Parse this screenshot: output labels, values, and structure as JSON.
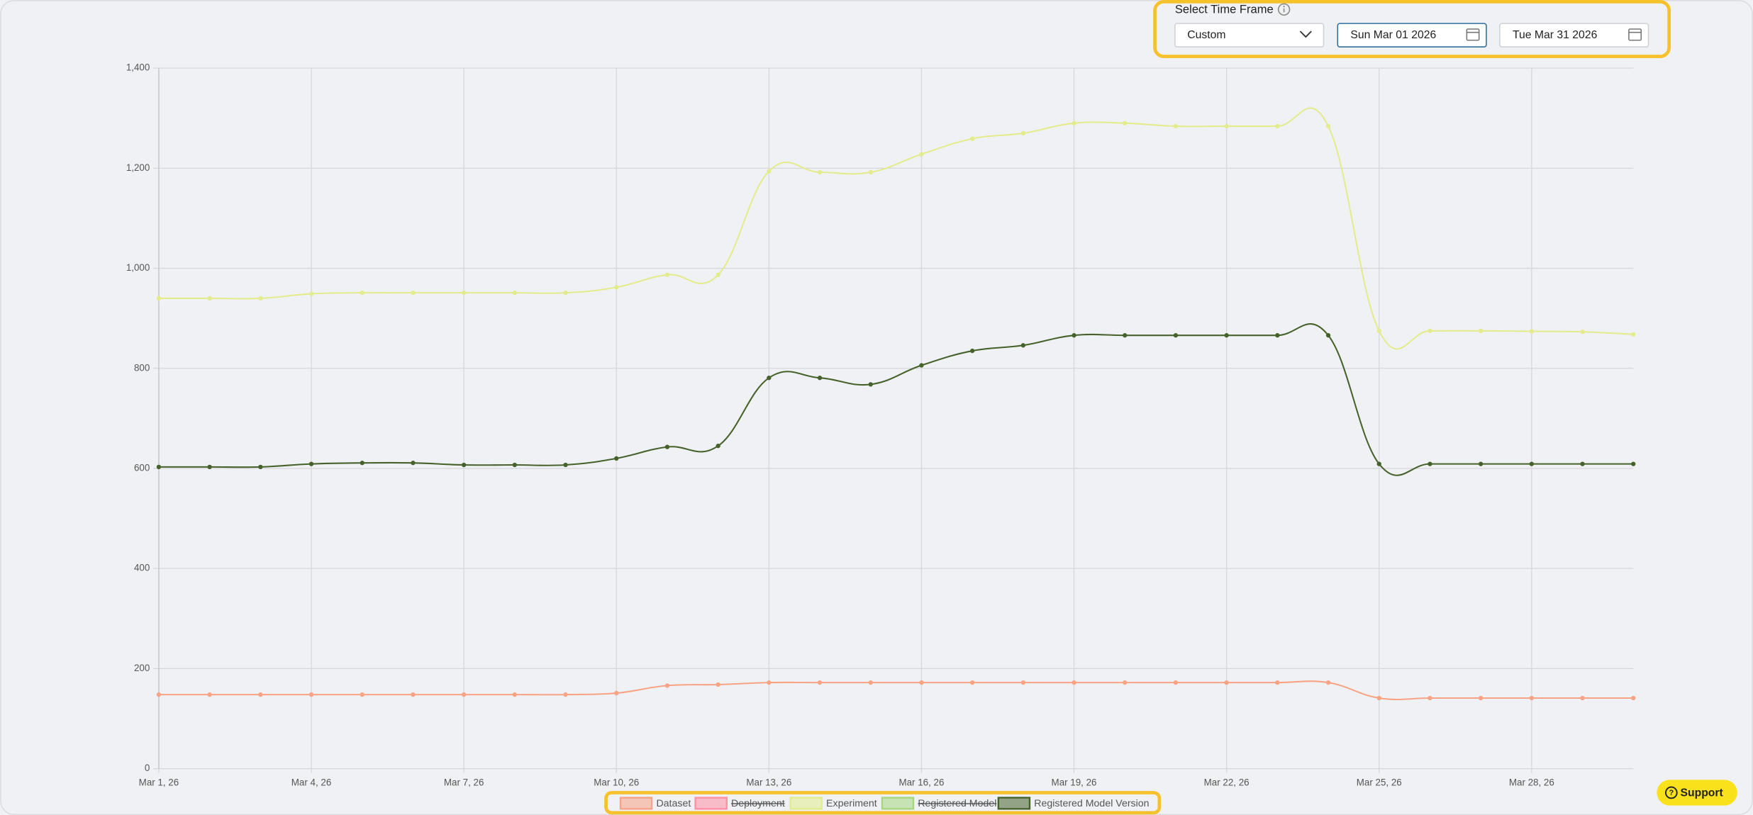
{
  "controls": {
    "label": "Select Time Frame",
    "time_frame": "Custom",
    "start_date": "Sun Mar 01 2026",
    "end_date": "Tue Mar 31 2026"
  },
  "support_button": "Support",
  "chart_data": {
    "type": "line",
    "categories": [
      "Mar 1, 26",
      null,
      null,
      "Mar 4, 26",
      null,
      null,
      "Mar 7, 26",
      null,
      null,
      "Mar 10, 26",
      null,
      null,
      "Mar 13, 26",
      null,
      null,
      "Mar 16, 26",
      null,
      null,
      "Mar 19, 26",
      null,
      null,
      "Mar 22, 26",
      null,
      null,
      "Mar 25, 26",
      null,
      null,
      "Mar 28, 26",
      null,
      null
    ],
    "series": [
      {
        "name": "Dataset",
        "color": "#f7a384",
        "values": [
          148,
          148,
          148,
          148,
          148,
          148,
          148,
          148,
          148,
          151,
          166,
          168,
          172,
          172,
          172,
          172,
          172,
          172,
          172,
          172,
          172,
          172,
          172,
          172,
          141,
          141,
          141,
          141,
          141,
          141
        ]
      },
      {
        "name": "Deployment",
        "color": "#ff8fa3",
        "hidden": true
      },
      {
        "name": "Experiment",
        "color": "#e3ec8c",
        "values": [
          940,
          940,
          940,
          949,
          951,
          951,
          951,
          951,
          951,
          962,
          987,
          987,
          1194,
          1192,
          1192,
          1228,
          1259,
          1270,
          1290,
          1290,
          1284,
          1284,
          1284,
          1284,
          875,
          875,
          875,
          874,
          873,
          868
        ]
      },
      {
        "name": "Registered Model",
        "color": "#a6d77e",
        "hidden": true
      },
      {
        "name": "Registered Model Version",
        "color": "#46622a",
        "values": [
          603,
          603,
          603,
          609,
          611,
          611,
          607,
          607,
          607,
          620,
          643,
          645,
          781,
          781,
          768,
          806,
          835,
          846,
          866,
          866,
          866,
          866,
          866,
          866,
          609,
          609,
          609,
          609,
          609,
          609
        ]
      }
    ],
    "ylim": [
      0,
      1400
    ],
    "yticks": [
      0,
      200,
      400,
      600,
      800,
      {
        "value": 1000,
        "label": "1,000"
      },
      {
        "value": 1200,
        "label": "1,200"
      },
      {
        "value": 1400,
        "label": "1,400"
      }
    ],
    "grid": true,
    "legend": "bottom"
  }
}
